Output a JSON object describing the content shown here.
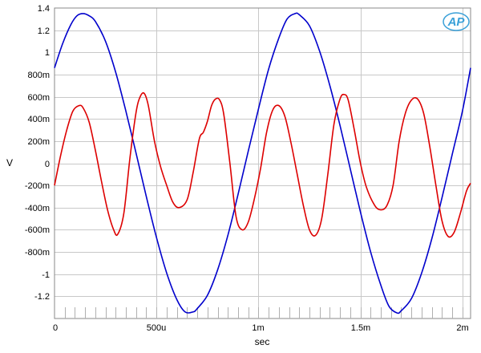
{
  "chart_data": {
    "type": "line",
    "xlabel": "sec",
    "ylabel": "V",
    "xlim": [
      0,
      0.00204
    ],
    "ylim": [
      -1.4,
      1.4
    ],
    "grid": true,
    "x_ticks": [
      {
        "value": 0,
        "label": "0"
      },
      {
        "value": 0.0005,
        "label": "500u"
      },
      {
        "value": 0.001,
        "label": "1m"
      },
      {
        "value": 0.0015,
        "label": "1.5m"
      },
      {
        "value": 0.002,
        "label": "2m"
      }
    ],
    "y_ticks": [
      {
        "value": 1.4,
        "label": "1.4"
      },
      {
        "value": 1.2,
        "label": "1.2"
      },
      {
        "value": 1.0,
        "label": "1"
      },
      {
        "value": 0.8,
        "label": "800m"
      },
      {
        "value": 0.6,
        "label": "600m"
      },
      {
        "value": 0.4,
        "label": "400m"
      },
      {
        "value": 0.2,
        "label": "200m"
      },
      {
        "value": 0,
        "label": "0"
      },
      {
        "value": -0.2,
        "label": "-200m"
      },
      {
        "value": -0.4,
        "label": "-400m"
      },
      {
        "value": -0.6,
        "label": "-600m"
      },
      {
        "value": -0.8,
        "label": "-800m"
      },
      {
        "value": -1.0,
        "label": "-1"
      },
      {
        "value": -1.2,
        "label": "-1.2"
      }
    ],
    "series": [
      {
        "color": "#0000cc",
        "x": [
          0,
          4e-05,
          8e-05,
          0.00011,
          0.00014,
          0.00017,
          0.0002,
          0.00025,
          0.0003,
          0.00035,
          0.0004,
          0.00045,
          0.0005,
          0.00055,
          0.0006,
          0.00064,
          0.00068,
          0.0007,
          0.00075,
          0.0008,
          0.00085,
          0.0009,
          0.00095,
          0.001,
          0.00105,
          0.0011,
          0.00114,
          0.00118,
          0.0012,
          0.00125,
          0.0013,
          0.00135,
          0.0014,
          0.00145,
          0.0015,
          0.00155,
          0.0016,
          0.00164,
          0.00168,
          0.0017,
          0.00175,
          0.0018,
          0.00185,
          0.0019,
          0.00195,
          0.002,
          0.00204
        ],
        "y": [
          0.86,
          1.08,
          1.25,
          1.33,
          1.35,
          1.33,
          1.28,
          1.1,
          0.82,
          0.47,
          0.09,
          -0.3,
          -0.67,
          -0.99,
          -1.23,
          -1.34,
          -1.34,
          -1.31,
          -1.19,
          -0.96,
          -0.65,
          -0.28,
          0.11,
          0.49,
          0.85,
          1.13,
          1.3,
          1.35,
          1.34,
          1.24,
          1.01,
          0.7,
          0.34,
          -0.05,
          -0.44,
          -0.8,
          -1.1,
          -1.29,
          -1.35,
          -1.33,
          -1.22,
          -0.99,
          -0.68,
          -0.31,
          0.08,
          0.47,
          0.86
        ]
      },
      {
        "color": "#dd0000",
        "x": [
          0,
          3e-05,
          6e-05,
          9e-05,
          0.00012,
          0.00014,
          0.00017,
          0.0002,
          0.00023,
          0.00026,
          0.00029,
          0.00031,
          0.00034,
          0.00037,
          0.0004,
          0.00042,
          0.00044,
          0.00046,
          0.00049,
          0.00052,
          0.00055,
          0.00058,
          0.00061,
          0.00065,
          0.00068,
          0.00071,
          0.00073,
          0.00075,
          0.00077,
          0.00079,
          0.00081,
          0.00083,
          0.00086,
          0.00089,
          0.00092,
          0.00095,
          0.00098,
          0.00101,
          0.00104,
          0.00107,
          0.0011,
          0.00113,
          0.00116,
          0.00119,
          0.00122,
          0.00125,
          0.00128,
          0.00131,
          0.00134,
          0.00137,
          0.0014,
          0.00142,
          0.00144,
          0.00147,
          0.0015,
          0.00153,
          0.00157,
          0.0016,
          0.00163,
          0.00166,
          0.00169,
          0.00172,
          0.00175,
          0.00178,
          0.00181,
          0.00184,
          0.00187,
          0.0019,
          0.00193,
          0.00196,
          0.00199,
          0.00202,
          0.00204
        ],
        "y": [
          -0.2,
          0.07,
          0.3,
          0.47,
          0.52,
          0.5,
          0.37,
          0.12,
          -0.16,
          -0.42,
          -0.6,
          -0.64,
          -0.45,
          0.05,
          0.46,
          0.6,
          0.63,
          0.52,
          0.2,
          -0.03,
          -0.2,
          -0.35,
          -0.4,
          -0.33,
          -0.08,
          0.22,
          0.28,
          0.38,
          0.52,
          0.58,
          0.57,
          0.44,
          0.0,
          -0.48,
          -0.6,
          -0.53,
          -0.32,
          -0.05,
          0.28,
          0.48,
          0.52,
          0.42,
          0.18,
          -0.1,
          -0.38,
          -0.6,
          -0.65,
          -0.5,
          -0.1,
          0.35,
          0.58,
          0.62,
          0.57,
          0.3,
          0.0,
          -0.22,
          -0.38,
          -0.42,
          -0.38,
          -0.2,
          0.2,
          0.45,
          0.57,
          0.58,
          0.45,
          0.15,
          -0.2,
          -0.52,
          -0.66,
          -0.62,
          -0.45,
          -0.25,
          -0.18
        ]
      }
    ]
  },
  "logo": {
    "text": "AP",
    "color": "#3aa0d8"
  }
}
